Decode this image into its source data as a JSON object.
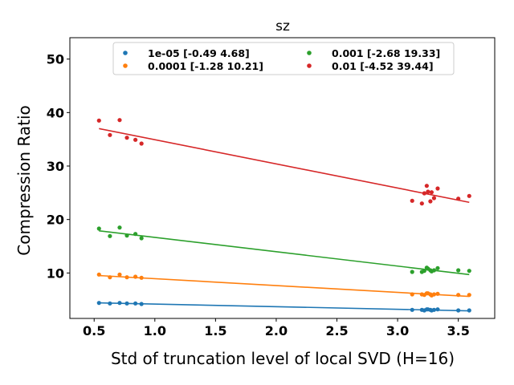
{
  "chart_data": {
    "type": "scatter",
    "title": "sz",
    "xlabel": "Std of truncation level of local SVD (H=16)",
    "ylabel": "Compression Ratio",
    "xlim": [
      0.3,
      3.8
    ],
    "ylim": [
      1.5,
      54
    ],
    "xticks": [
      "0.5",
      "1.0",
      "1.5",
      "2.0",
      "2.5",
      "3.0",
      "3.5"
    ],
    "xtick_values": [
      0.5,
      1.0,
      1.5,
      2.0,
      2.5,
      3.0,
      3.5
    ],
    "yticks": [
      "10",
      "20",
      "30",
      "40",
      "50"
    ],
    "ytick_values": [
      10,
      20,
      30,
      40,
      50
    ],
    "grid": false,
    "legend_placement": "top-center",
    "series": [
      {
        "name": "1e-05 [-0.49  4.68]",
        "color": "#1f77b4",
        "slope": -0.49,
        "intercept": 4.68,
        "points": [
          [
            0.54,
            4.4
          ],
          [
            0.63,
            4.3
          ],
          [
            0.71,
            4.4
          ],
          [
            0.77,
            4.3
          ],
          [
            0.84,
            4.3
          ],
          [
            0.89,
            4.2
          ],
          [
            3.12,
            3.1
          ],
          [
            3.2,
            3.1
          ],
          [
            3.22,
            3.0
          ],
          [
            3.24,
            3.2
          ],
          [
            3.25,
            3.2
          ],
          [
            3.27,
            3.1
          ],
          [
            3.28,
            3.0
          ],
          [
            3.3,
            3.1
          ],
          [
            3.33,
            3.2
          ],
          [
            3.5,
            3.0
          ],
          [
            3.59,
            3.0
          ]
        ]
      },
      {
        "name": "0.0001 [-1.28 10.21]",
        "color": "#ff7f0e",
        "slope": -1.28,
        "intercept": 10.21,
        "points": [
          [
            0.54,
            9.7
          ],
          [
            0.63,
            9.2
          ],
          [
            0.71,
            9.7
          ],
          [
            0.77,
            9.2
          ],
          [
            0.84,
            9.3
          ],
          [
            0.89,
            9.1
          ],
          [
            3.12,
            6.0
          ],
          [
            3.2,
            6.0
          ],
          [
            3.22,
            5.9
          ],
          [
            3.24,
            6.2
          ],
          [
            3.25,
            6.2
          ],
          [
            3.27,
            6.0
          ],
          [
            3.28,
            5.8
          ],
          [
            3.3,
            6.0
          ],
          [
            3.33,
            6.1
          ],
          [
            3.5,
            5.9
          ],
          [
            3.59,
            5.9
          ]
        ]
      },
      {
        "name": "0.001 [-2.68 19.33]",
        "color": "#2ca02c",
        "slope": -2.68,
        "intercept": 19.33,
        "points": [
          [
            0.54,
            18.3
          ],
          [
            0.63,
            16.9
          ],
          [
            0.71,
            18.5
          ],
          [
            0.77,
            17.0
          ],
          [
            0.84,
            17.3
          ],
          [
            0.89,
            16.5
          ],
          [
            3.12,
            10.2
          ],
          [
            3.2,
            10.2
          ],
          [
            3.22,
            10.4
          ],
          [
            3.24,
            11.0
          ],
          [
            3.25,
            10.8
          ],
          [
            3.27,
            10.5
          ],
          [
            3.28,
            10.3
          ],
          [
            3.3,
            10.5
          ],
          [
            3.33,
            10.9
          ],
          [
            3.5,
            10.5
          ],
          [
            3.59,
            10.4
          ]
        ]
      },
      {
        "name": "0.01 [-4.52 39.44]",
        "color": "#d62728",
        "slope": -4.52,
        "intercept": 39.44,
        "points": [
          [
            0.54,
            38.5
          ],
          [
            0.63,
            35.8
          ],
          [
            0.71,
            38.6
          ],
          [
            0.77,
            35.3
          ],
          [
            0.84,
            34.9
          ],
          [
            0.89,
            34.2
          ],
          [
            3.12,
            23.5
          ],
          [
            3.2,
            23.0
          ],
          [
            3.22,
            24.9
          ],
          [
            3.24,
            26.3
          ],
          [
            3.25,
            25.2
          ],
          [
            3.27,
            23.4
          ],
          [
            3.28,
            25.1
          ],
          [
            3.3,
            24.0
          ],
          [
            3.33,
            25.8
          ],
          [
            3.5,
            23.9
          ],
          [
            3.59,
            24.4
          ]
        ]
      }
    ]
  }
}
